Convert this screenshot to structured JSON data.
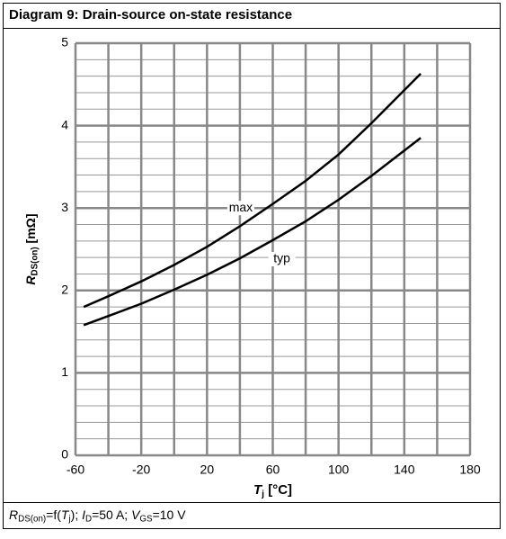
{
  "chart_data": {
    "type": "line",
    "title": "Diagram 9: Drain-source on-state resistance",
    "y_label": [
      {
        "text": "R",
        "style": "italic"
      },
      {
        "text": "DS(on)",
        "style": "sub"
      },
      {
        "text": " [mΩ]",
        "style": "normal"
      }
    ],
    "x_label": [
      {
        "text": "T",
        "style": "italic"
      },
      {
        "text": "j",
        "style": "sub"
      },
      {
        "text": " [°C]",
        "style": "normal"
      }
    ],
    "footer": [
      {
        "text": "R",
        "style": "italic"
      },
      {
        "text": "DS(on)",
        "style": "sub"
      },
      {
        "text": "=f(",
        "style": "normal"
      },
      {
        "text": "T",
        "style": "italic"
      },
      {
        "text": "j",
        "style": "sub"
      },
      {
        "text": "); ",
        "style": "normal"
      },
      {
        "text": "I",
        "style": "italic"
      },
      {
        "text": "D",
        "style": "sub"
      },
      {
        "text": "=50 A; ",
        "style": "normal"
      },
      {
        "text": "V",
        "style": "italic"
      },
      {
        "text": "GS",
        "style": "sub"
      },
      {
        "text": "=10 V",
        "style": "normal"
      }
    ],
    "x": [
      -55,
      -40,
      -20,
      0,
      20,
      40,
      60,
      80,
      100,
      120,
      150
    ],
    "series": [
      {
        "name": "max",
        "color": "#000000",
        "values": [
          1.8,
          1.93,
          2.11,
          2.31,
          2.53,
          2.78,
          3.05,
          3.33,
          3.65,
          4.03,
          4.63
        ]
      },
      {
        "name": "typ",
        "color": "#000000",
        "values": [
          1.58,
          1.69,
          1.84,
          2.01,
          2.19,
          2.39,
          2.61,
          2.84,
          3.1,
          3.39,
          3.85
        ]
      }
    ],
    "annotations": [
      {
        "text": "max",
        "x": 40,
        "y": 3.0,
        "series": 0
      },
      {
        "text": "typ",
        "x": 65,
        "y": 2.38,
        "series": 1
      }
    ],
    "xlim": [
      -60,
      180
    ],
    "ylim": [
      0,
      5
    ],
    "xticks": [
      -60,
      -20,
      20,
      60,
      100,
      140,
      180
    ],
    "yticks": [
      0,
      1,
      2,
      3,
      4,
      5
    ],
    "minor_xticks": [
      -40,
      0,
      40,
      80,
      120,
      160
    ],
    "minor_yticks": [
      0.2,
      0.4,
      0.6,
      0.8,
      1.2,
      1.4,
      1.6,
      1.8,
      2.2,
      2.4,
      2.6,
      2.8,
      3.2,
      3.4,
      3.6,
      3.8,
      4.2,
      4.4,
      4.6,
      4.8
    ],
    "grid": true
  }
}
